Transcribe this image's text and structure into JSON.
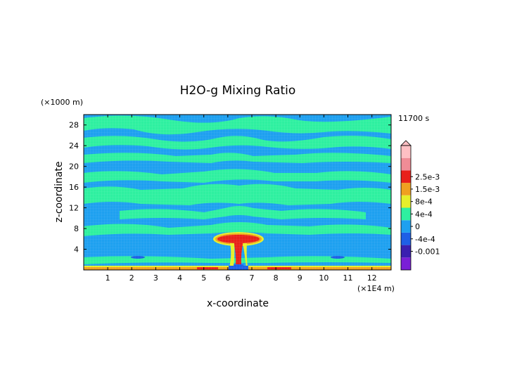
{
  "chart_data": {
    "type": "heatmap",
    "title": "H2O-g Mixing Ratio",
    "xlabel": "x-coordinate",
    "ylabel": "z-coordinate",
    "x_unit": "(×1E4 m)",
    "y_unit": "(×1000 m)",
    "time_label": "11700 s",
    "xlim": [
      0,
      12.8
    ],
    "ylim": [
      0,
      30
    ],
    "x_ticks": [
      "1",
      "2",
      "3",
      "4",
      "5",
      "6",
      "7",
      "8",
      "9",
      "10",
      "11",
      "12"
    ],
    "y_ticks": [
      "4",
      "8",
      "12",
      "16",
      "20",
      "24",
      "28"
    ],
    "colorbar": {
      "labels": [
        "2.5e-3",
        "1.5e-3",
        "8e-4",
        "4e-4",
        "0",
        "-4e-4",
        "-0.001"
      ],
      "levels": [
        -0.0014,
        -0.001,
        -0.0004,
        0,
        0.0004,
        0.0008,
        0.0015,
        0.0025,
        0.003
      ],
      "colors": [
        "#7a1fd6",
        "#3a1fb0",
        "#1e5fe6",
        "#1ea0f0",
        "#2ef0a0",
        "#e6ef2a",
        "#f0a020",
        "#e8201a",
        "#f08c96",
        "#ffc0c4"
      ]
    },
    "features": [
      {
        "name": "background",
        "value": 0.0001
      },
      {
        "name": "stratified-bands",
        "value": 0.0005
      },
      {
        "name": "plume-anvil",
        "x": 6.35,
        "z": 6.0,
        "value": 0.0028
      },
      {
        "name": "plume-stem",
        "x": 6.35,
        "z": 3.5,
        "value": 0.002
      },
      {
        "name": "surface-layer",
        "z": 0.3,
        "value": 0.0009
      }
    ]
  }
}
